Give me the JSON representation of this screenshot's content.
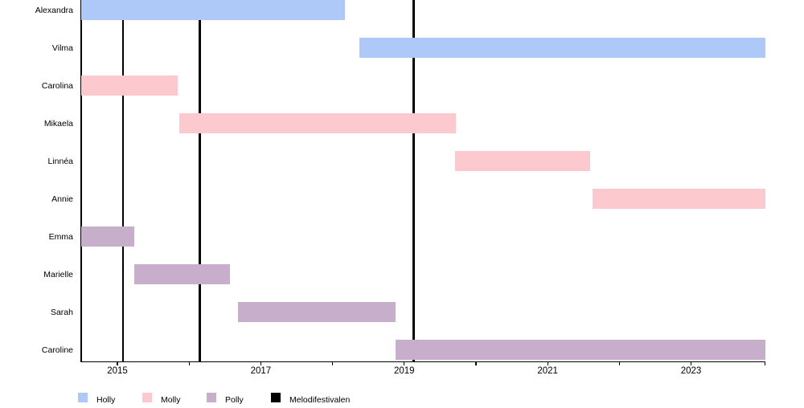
{
  "chart_data": {
    "type": "timeline",
    "title": "",
    "x_axis": {
      "min": 2014.495,
      "max": 2024.04,
      "tick_years": [
        2015,
        2016,
        2017,
        2018,
        2019,
        2020,
        2021,
        2022,
        2023
      ],
      "label_years": [
        2015,
        2017,
        2019,
        2021,
        2023
      ]
    },
    "groups": [
      {
        "name": "Holly",
        "color": "#aec8f7"
      },
      {
        "name": "Molly",
        "color": "#fcc9ce"
      },
      {
        "name": "Polly",
        "color": "#c7aecb"
      }
    ],
    "events": {
      "label": "Melodifestivalen",
      "color": "#000000",
      "years": [
        2015.08,
        2016.15,
        2019.13
      ]
    },
    "members": [
      {
        "name": "Alexandra",
        "group": "Holly",
        "start": 2014.495,
        "end": 2018.17
      },
      {
        "name": "Vilma",
        "group": "Holly",
        "start": 2018.38,
        "end": 2024.04
      },
      {
        "name": "Carolina",
        "group": "Molly",
        "start": 2014.495,
        "end": 2015.84
      },
      {
        "name": "Mikaela",
        "group": "Molly",
        "start": 2015.86,
        "end": 2019.72
      },
      {
        "name": "Linnéa",
        "group": "Molly",
        "start": 2019.71,
        "end": 2021.59
      },
      {
        "name": "Annie",
        "group": "Molly",
        "start": 2021.63,
        "end": 2024.04
      },
      {
        "name": "Emma",
        "group": "Polly",
        "start": 2014.495,
        "end": 2015.24
      },
      {
        "name": "Marielle",
        "group": "Polly",
        "start": 2015.23,
        "end": 2016.57
      },
      {
        "name": "Sarah",
        "group": "Polly",
        "start": 2016.68,
        "end": 2018.88
      },
      {
        "name": "Caroline",
        "group": "Polly",
        "start": 2018.88,
        "end": 2024.04
      }
    ],
    "legend": [
      {
        "label": "Holly",
        "color": "#aec8f7"
      },
      {
        "label": "Molly",
        "color": "#fcc9ce"
      },
      {
        "label": "Polly",
        "color": "#c7aecb"
      },
      {
        "label": "Melodifestivalen",
        "color": "#000000"
      }
    ]
  }
}
